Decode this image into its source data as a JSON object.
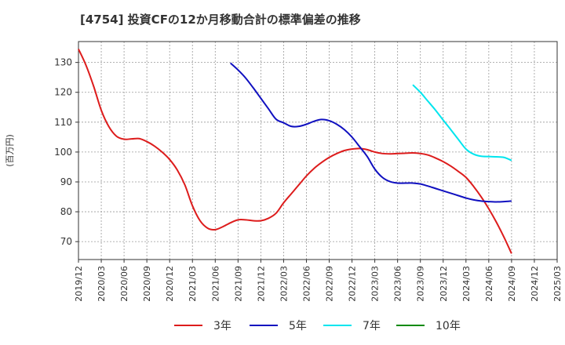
{
  "chart_data": {
    "type": "line",
    "title": "[4754]  投資CFの12か月移動合計の標準偏差の推移",
    "ylabel": "(百万円)",
    "xlabel": "",
    "ylim": [
      64,
      137
    ],
    "yticks": [
      70,
      80,
      90,
      100,
      110,
      120,
      130
    ],
    "x_tick_labels": [
      "2019/12",
      "2020/03",
      "2020/06",
      "2020/09",
      "2020/12",
      "2021/03",
      "2021/06",
      "2021/09",
      "2021/12",
      "2022/03",
      "2022/06",
      "2022/09",
      "2022/12",
      "2023/03",
      "2023/06",
      "2023/09",
      "2023/12",
      "2024/03",
      "2024/06",
      "2024/09",
      "2024/12",
      "2025/03"
    ],
    "grid": true,
    "legend_position": "bottom",
    "series": [
      {
        "name": "3年",
        "color": "#dd1c1c",
        "x": [
          "2019/12",
          "2020/01",
          "2020/02",
          "2020/03",
          "2020/04",
          "2020/05",
          "2020/06",
          "2020/07",
          "2020/08",
          "2020/09",
          "2020/10",
          "2020/11",
          "2020/12",
          "2021/01",
          "2021/02",
          "2021/03",
          "2021/04",
          "2021/05",
          "2021/06",
          "2021/07",
          "2021/08",
          "2021/09",
          "2021/10",
          "2021/11",
          "2021/12",
          "2022/01",
          "2022/02",
          "2022/03",
          "2022/04",
          "2022/05",
          "2022/06",
          "2022/07",
          "2022/08",
          "2022/09",
          "2022/10",
          "2022/11",
          "2022/12",
          "2023/01",
          "2023/02",
          "2023/03",
          "2023/04",
          "2023/05",
          "2023/06",
          "2023/07",
          "2023/08",
          "2023/09",
          "2023/10",
          "2023/11",
          "2023/12",
          "2024/01",
          "2024/02",
          "2024/03",
          "2024/04",
          "2024/05",
          "2024/06",
          "2024/07",
          "2024/08",
          "2024/09"
        ],
        "values": [
          134.5,
          129,
          122,
          114,
          108.5,
          105.3,
          104.3,
          104.4,
          104.5,
          103.5,
          102,
          100,
          97.5,
          94,
          89,
          82,
          77,
          74.5,
          74,
          75,
          76.3,
          77.3,
          77.3,
          77,
          77,
          77.8,
          79.5,
          83,
          86,
          89,
          92,
          94.5,
          96.5,
          98.2,
          99.5,
          100.5,
          101,
          101.2,
          100.8,
          100,
          99.5,
          99.4,
          99.5,
          99.6,
          99.7,
          99.5,
          99,
          98,
          96.8,
          95.3,
          93.5,
          91.5,
          88.5,
          85,
          81,
          76.5,
          71.5,
          66
        ]
      },
      {
        "name": "5年",
        "color": "#1010c0",
        "x": [
          "2021/08",
          "2021/09",
          "2021/10",
          "2021/11",
          "2021/12",
          "2022/01",
          "2022/02",
          "2022/03",
          "2022/04",
          "2022/05",
          "2022/06",
          "2022/07",
          "2022/08",
          "2022/09",
          "2022/10",
          "2022/11",
          "2022/12",
          "2023/01",
          "2023/02",
          "2023/03",
          "2023/04",
          "2023/05",
          "2023/06",
          "2023/07",
          "2023/08",
          "2023/09",
          "2023/10",
          "2023/11",
          "2023/12",
          "2024/01",
          "2024/02",
          "2024/03",
          "2024/04",
          "2024/05",
          "2024/06",
          "2024/07",
          "2024/08",
          "2024/09"
        ],
        "values": [
          129.8,
          127.5,
          124.8,
          121.5,
          118,
          114.5,
          111,
          109.8,
          108.6,
          108.6,
          109.3,
          110.3,
          110.9,
          110.5,
          109.3,
          107.5,
          105,
          101.8,
          98.5,
          94.3,
          91.5,
          90.1,
          89.6,
          89.6,
          89.6,
          89.3,
          88.6,
          87.8,
          87,
          86.2,
          85.4,
          84.6,
          84,
          83.6,
          83.4,
          83.3,
          83.4,
          83.6
        ]
      },
      {
        "name": "7年",
        "color": "#00e5ee",
        "x": [
          "2023/08",
          "2023/09",
          "2023/10",
          "2023/11",
          "2023/12",
          "2024/01",
          "2024/02",
          "2024/03",
          "2024/04",
          "2024/05",
          "2024/06",
          "2024/07",
          "2024/08",
          "2024/09"
        ],
        "values": [
          122.5,
          120,
          117,
          114,
          110.7,
          107.5,
          104.2,
          101,
          99.3,
          98.6,
          98.5,
          98.4,
          98.2,
          97.2
        ]
      },
      {
        "name": "10年",
        "color": "#0a8a0a",
        "x": [],
        "values": []
      }
    ]
  }
}
